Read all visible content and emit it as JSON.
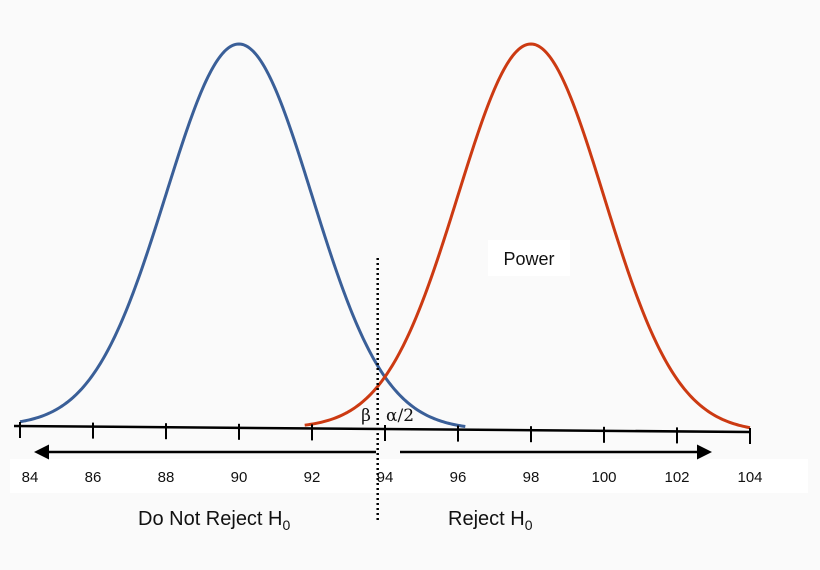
{
  "chart_data": {
    "type": "line",
    "title": "",
    "xlabel": "",
    "ylabel": "",
    "xlim": [
      84,
      104
    ],
    "x_ticks": [
      "84",
      "86",
      "88",
      "90",
      "92",
      "94",
      "96",
      "98",
      "100",
      "102",
      "104"
    ],
    "critical_value": 93.8,
    "series": [
      {
        "mean": 90,
        "sd": 2,
        "color": "#3a5f98",
        "x_range": [
          84,
          96.2
        ]
      },
      {
        "mean": 98,
        "sd": 2,
        "color": "#cc3a12",
        "x_range": [
          91.8,
          104
        ]
      }
    ],
    "annotations": {
      "beta": "β",
      "alpha_half": "α/2",
      "power": "Power",
      "do_not_reject": "Do Not Reject H",
      "reject": "Reject H",
      "subscript": "0"
    },
    "colors": {
      "axis": "#000000",
      "label_box": "#ffffff",
      "background": "#fafafa"
    }
  }
}
